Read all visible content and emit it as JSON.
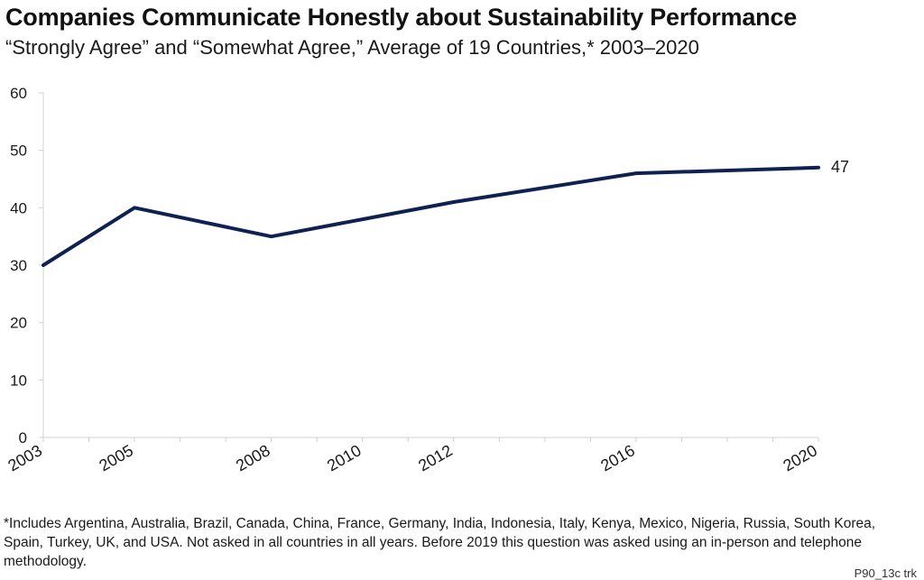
{
  "title": "Companies Communicate Honestly about Sustainability Performance",
  "subtitle": "“Strongly Agree” and “Somewhat Agree,” Average of 19 Countries,* 2003–2020",
  "footnote": "*Includes Argentina, Australia, Brazil, Canada, China, France, Germany, India, Indonesia, Italy, Kenya, Mexico, Nigeria, Russia, South Korea, Spain, Turkey, UK, and USA. Not asked in all countries in all years. Before 2019 this question was asked using an in-person and telephone methodology.",
  "source_code": "P90_13c trk",
  "chart_data": {
    "type": "line",
    "title": "Companies Communicate Honestly about Sustainability Performance",
    "subtitle": "“Strongly Agree” and “Somewhat Agree,” Average of 19 Countries,* 2003–2020",
    "x": [
      2003,
      2005,
      2008,
      2010,
      2012,
      2016,
      2020
    ],
    "tick_labels": [
      "2003",
      "2005",
      "2008",
      "2010",
      "2012",
      "2016",
      "2020"
    ],
    "series": [
      {
        "values": [
          30,
          40,
          35,
          38,
          41,
          46,
          47
        ]
      }
    ],
    "end_label": "47",
    "ylim": [
      0,
      60
    ],
    "yticks": [
      0,
      10,
      20,
      30,
      40,
      50,
      60
    ],
    "grid": false,
    "legend": "none",
    "colors": {
      "line": "#0f2150",
      "axis": "#d0d0d0",
      "text": "#1a1a1a"
    }
  }
}
